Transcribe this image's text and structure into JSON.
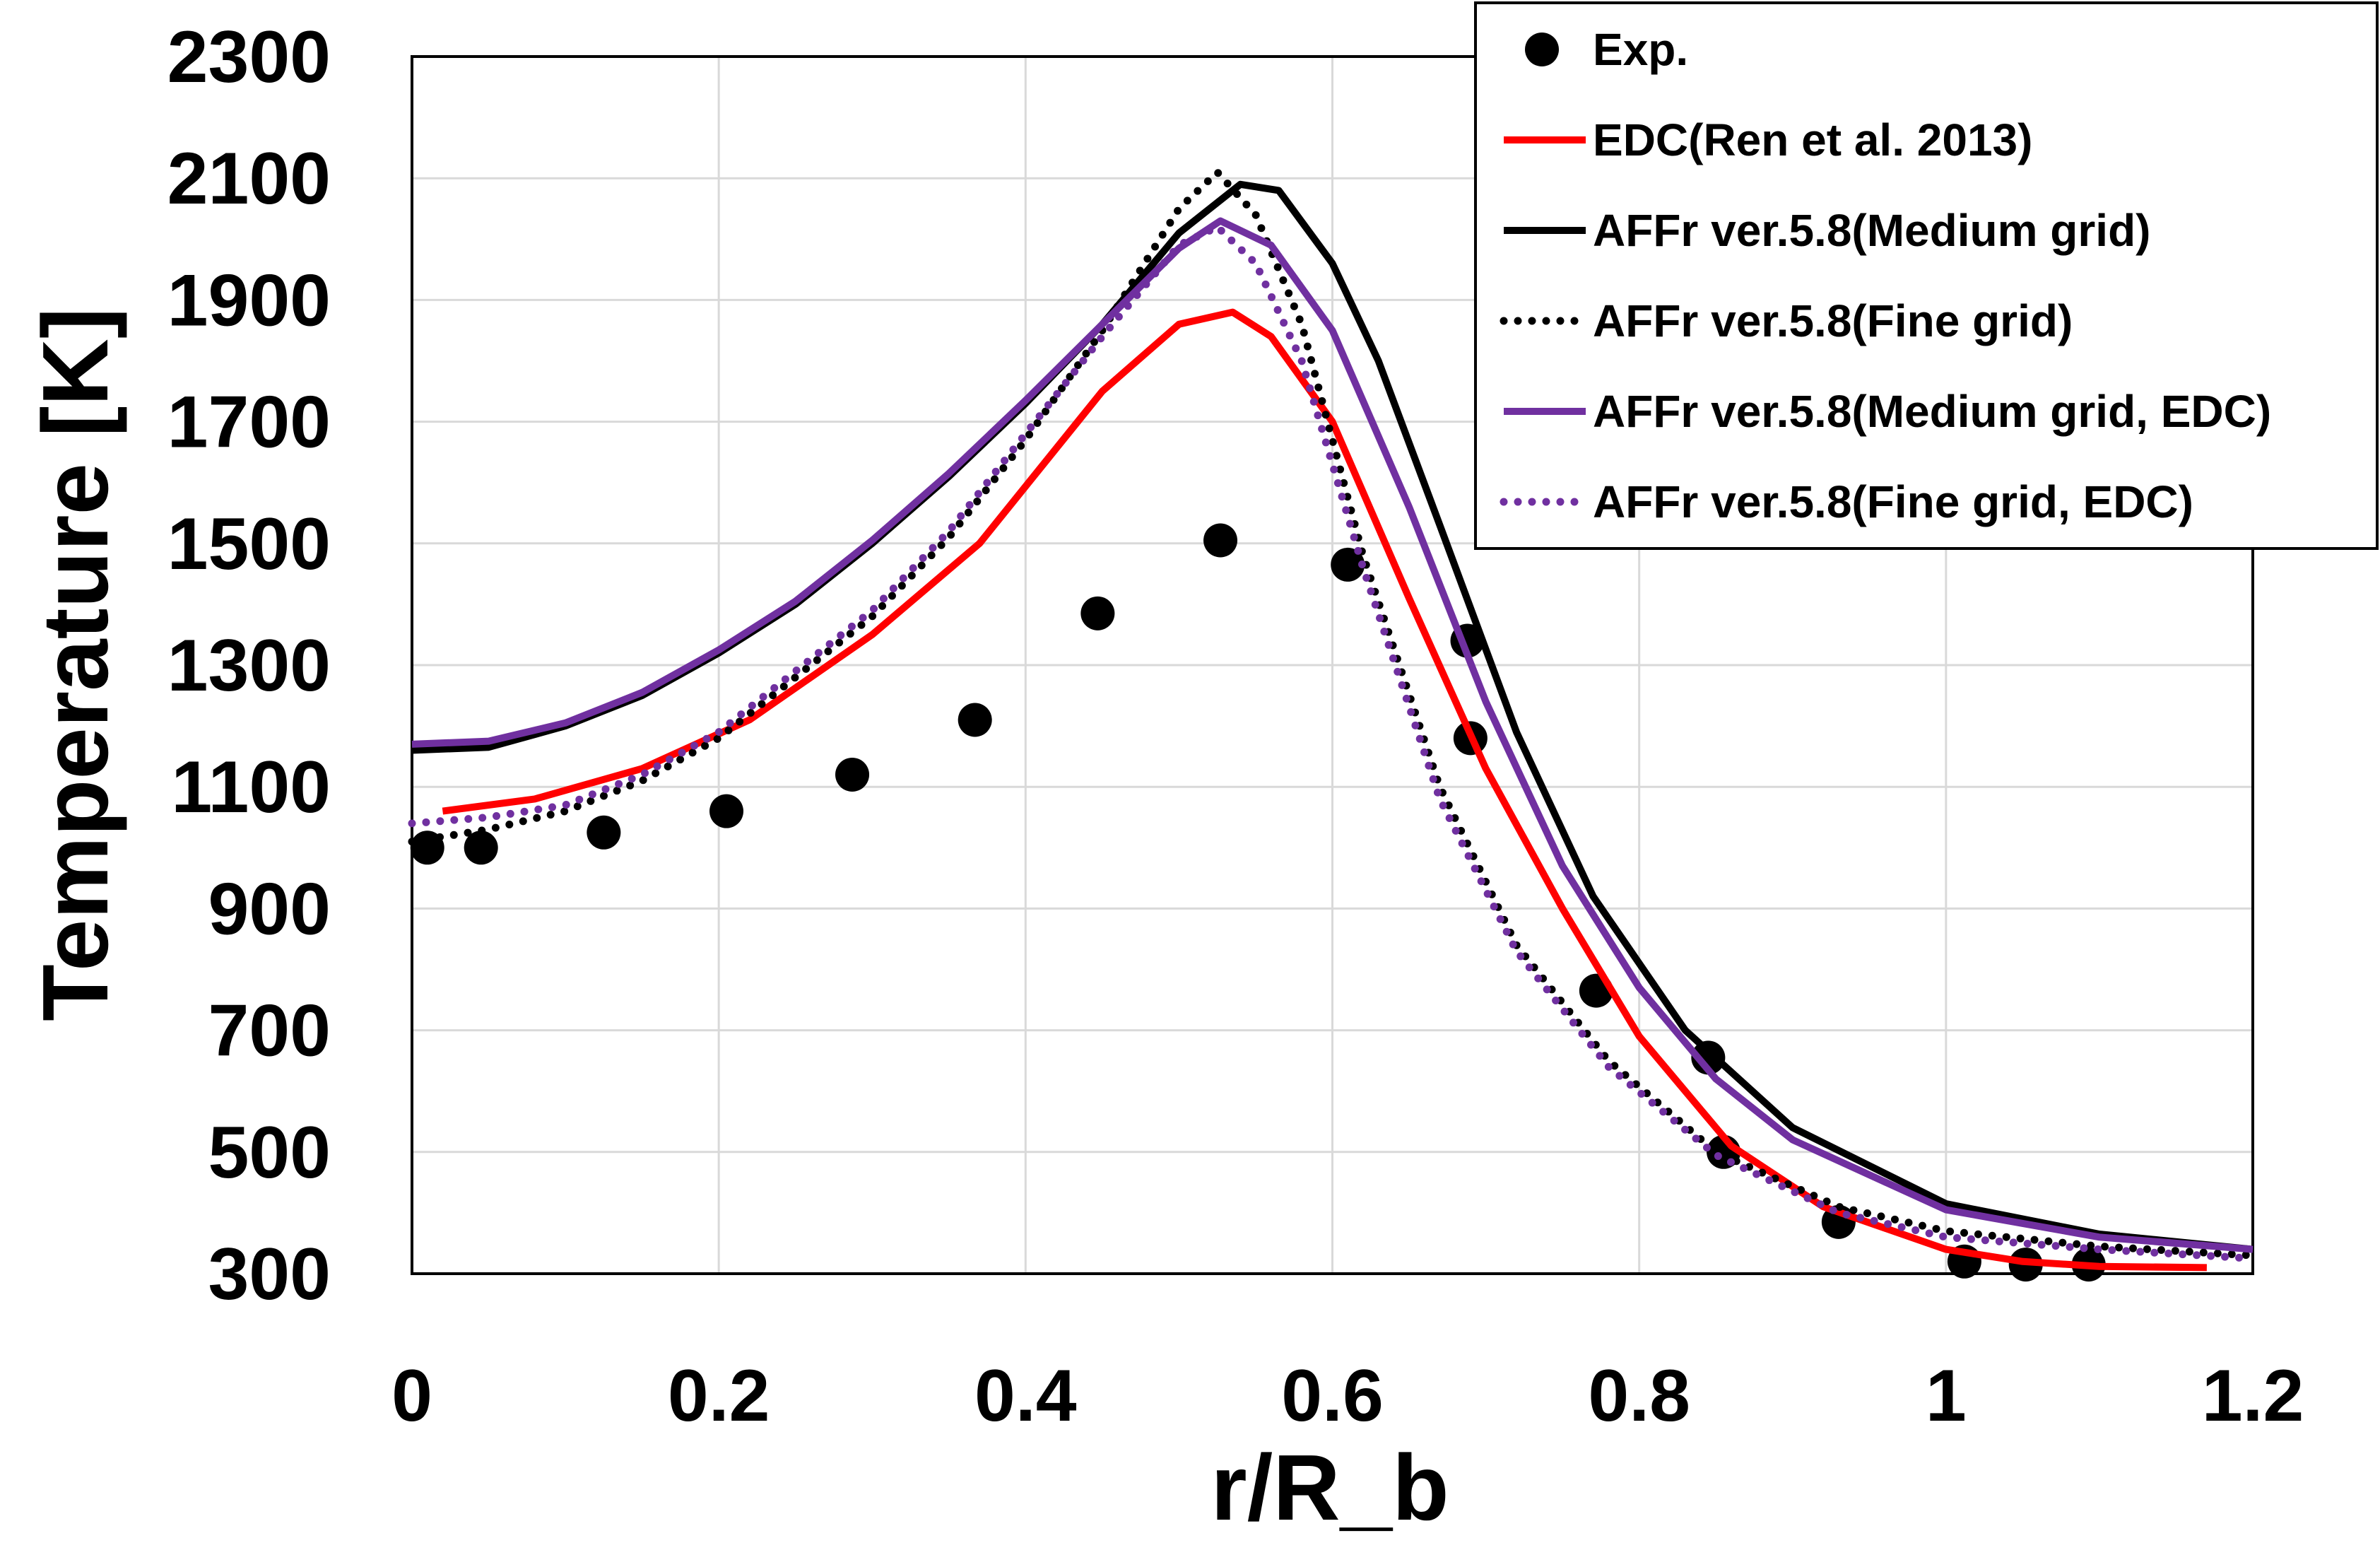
{
  "chart_data": {
    "type": "line",
    "xlabel": "r/R_b",
    "ylabel": "Temperature [K]",
    "xlim": [
      0,
      1.2
    ],
    "ylim": [
      300,
      2300
    ],
    "xticks": [
      "0",
      "0.2",
      "0.4",
      "0.6",
      "0.8",
      "1",
      "1.2"
    ],
    "yticks": [
      "300",
      "500",
      "700",
      "900",
      "1100",
      "1300",
      "1500",
      "1700",
      "1900",
      "2100",
      "2300"
    ],
    "grid": true,
    "legend_position": "top-right",
    "series": [
      {
        "name": "Exp.",
        "style": "markers",
        "color": "#000000",
        "x": [
          0.01,
          0.045,
          0.125,
          0.205,
          0.287,
          0.367,
          0.447,
          0.527,
          0.61,
          0.688,
          0.69,
          0.772,
          0.845,
          0.855,
          0.93,
          1.012,
          1.052,
          1.093
        ],
        "y": [
          1000,
          1000,
          1025,
          1060,
          1120,
          1210,
          1385,
          1505,
          1465,
          1340,
          1180,
          765,
          655,
          500,
          385,
          320,
          315,
          315
        ]
      },
      {
        "name": "EDC(Ren et al. 2013)",
        "style": "solid",
        "color": "#ff0000",
        "x": [
          0.02,
          0.08,
          0.15,
          0.22,
          0.3,
          0.37,
          0.45,
          0.5,
          0.535,
          0.56,
          0.6,
          0.65,
          0.7,
          0.75,
          0.8,
          0.86,
          0.92,
          1.0,
          1.05,
          1.1,
          1.17
        ],
        "y": [
          1060,
          1080,
          1130,
          1210,
          1350,
          1500,
          1750,
          1860,
          1880,
          1840,
          1700,
          1410,
          1130,
          900,
          690,
          510,
          410,
          340,
          320,
          312,
          310
        ]
      },
      {
        "name": "AFFr ver.5.8(Medium grid)",
        "style": "solid",
        "color": "#000000",
        "x": [
          0.0,
          0.05,
          0.1,
          0.15,
          0.2,
          0.25,
          0.3,
          0.35,
          0.4,
          0.45,
          0.5,
          0.54,
          0.565,
          0.6,
          0.63,
          0.67,
          0.72,
          0.77,
          0.83,
          0.9,
          1.0,
          1.1,
          1.2
        ],
        "y": [
          1160,
          1165,
          1200,
          1250,
          1320,
          1400,
          1500,
          1610,
          1730,
          1860,
          2010,
          2090,
          2080,
          1960,
          1800,
          1530,
          1190,
          920,
          700,
          540,
          415,
          365,
          340
        ]
      },
      {
        "name": "AFFr ver.5.8(Fine grid)",
        "style": "dotted",
        "color": "#000000",
        "x": [
          0.0,
          0.05,
          0.1,
          0.15,
          0.2,
          0.25,
          0.3,
          0.35,
          0.4,
          0.45,
          0.5,
          0.525,
          0.55,
          0.58,
          0.62,
          0.67,
          0.72,
          0.78,
          0.85,
          0.93,
          1.0,
          1.1,
          1.2
        ],
        "y": [
          1010,
          1030,
          1060,
          1110,
          1180,
          1280,
          1380,
          1510,
          1670,
          1850,
          2050,
          2110,
          2040,
          1860,
          1480,
          1100,
          840,
          650,
          500,
          410,
          370,
          345,
          330
        ]
      },
      {
        "name": "AFFr ver.5.8(Medium grid, EDC)",
        "style": "solid",
        "color": "#7030a0",
        "x": [
          0.0,
          0.05,
          0.1,
          0.15,
          0.2,
          0.25,
          0.3,
          0.35,
          0.4,
          0.45,
          0.5,
          0.527,
          0.56,
          0.6,
          0.65,
          0.7,
          0.75,
          0.8,
          0.85,
          0.9,
          1.0,
          1.1,
          1.2
        ],
        "y": [
          1170,
          1175,
          1205,
          1255,
          1325,
          1405,
          1505,
          1615,
          1735,
          1860,
          1985,
          2030,
          1990,
          1850,
          1560,
          1240,
          970,
          770,
          620,
          520,
          405,
          360,
          340
        ]
      },
      {
        "name": "AFFr ver.5.8(Fine grid, EDC)",
        "style": "dotted",
        "color": "#7030a0",
        "x": [
          0.0,
          0.05,
          0.1,
          0.15,
          0.2,
          0.25,
          0.3,
          0.35,
          0.4,
          0.45,
          0.5,
          0.525,
          0.55,
          0.58,
          0.62,
          0.67,
          0.72,
          0.78,
          0.85,
          0.93,
          1.0,
          1.1,
          1.2
        ],
        "y": [
          1040,
          1050,
          1070,
          1120,
          1190,
          1290,
          1390,
          1520,
          1680,
          1840,
          1990,
          2020,
          1960,
          1800,
          1460,
          1080,
          830,
          640,
          495,
          400,
          360,
          340,
          325
        ]
      }
    ]
  }
}
